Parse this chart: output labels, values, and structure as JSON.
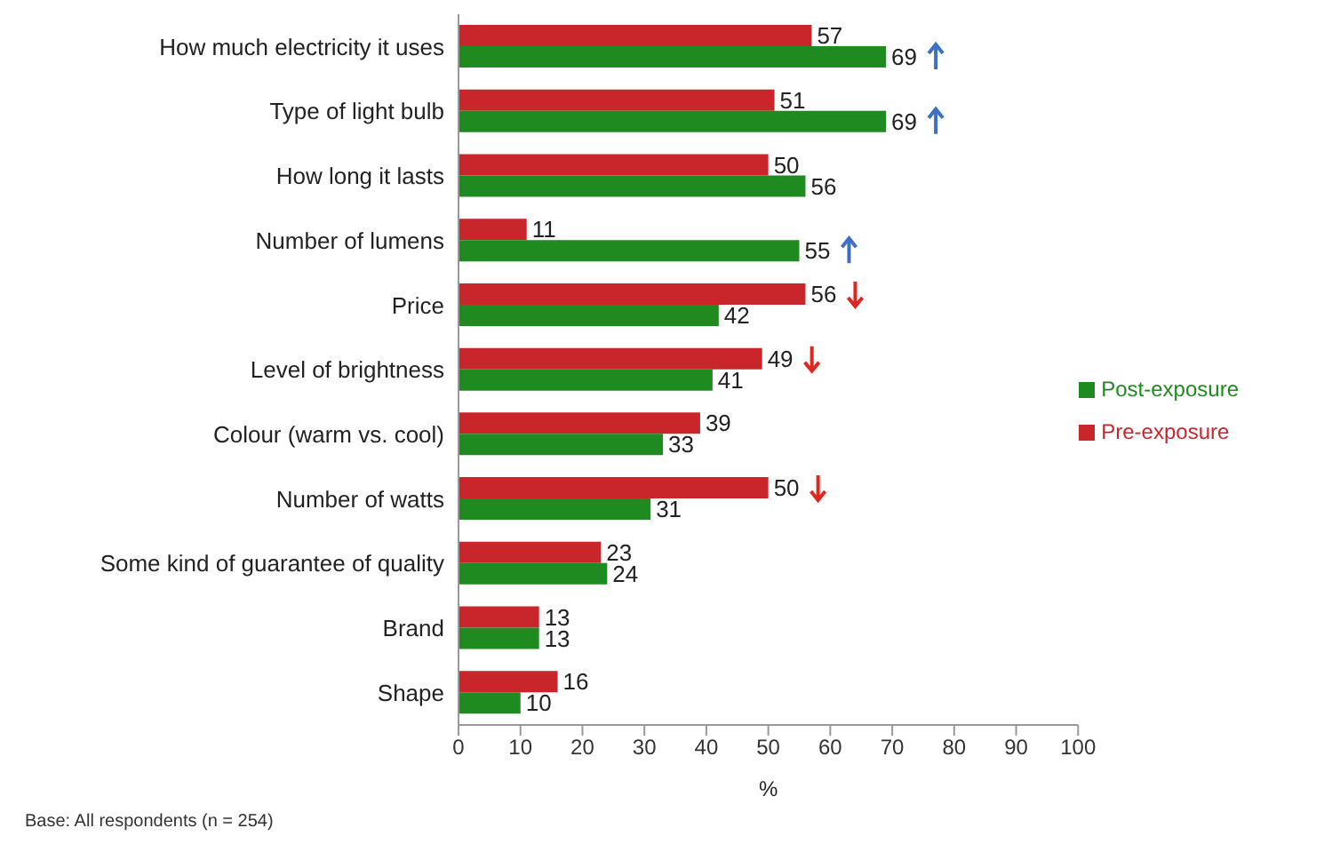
{
  "chart_data": {
    "type": "bar",
    "orientation": "horizontal",
    "categories": [
      "How much electricity it uses",
      "Type of light bulb",
      "How long it lasts",
      "Number of lumens",
      "Price",
      "Level of brightness",
      "Colour (warm vs. cool)",
      "Number of watts",
      "Some kind of guarantee of quality",
      "Brand",
      "Shape"
    ],
    "series": [
      {
        "name": "Pre-exposure",
        "color": "#c9262c",
        "values": [
          57,
          51,
          50,
          11,
          56,
          49,
          39,
          50,
          23,
          13,
          16
        ]
      },
      {
        "name": "Post-exposure",
        "color": "#1f8a1f",
        "values": [
          69,
          69,
          56,
          55,
          42,
          41,
          33,
          31,
          24,
          13,
          10
        ]
      }
    ],
    "xlabel": "%",
    "xlim": [
      0,
      100
    ],
    "xticks": [
      0,
      10,
      20,
      30,
      40,
      50,
      60,
      70,
      80,
      90,
      100
    ],
    "data_labels": true,
    "grid": false,
    "legend": "right",
    "annotations": [
      "Base: All respondents (n = 254)"
    ]
  }
}
